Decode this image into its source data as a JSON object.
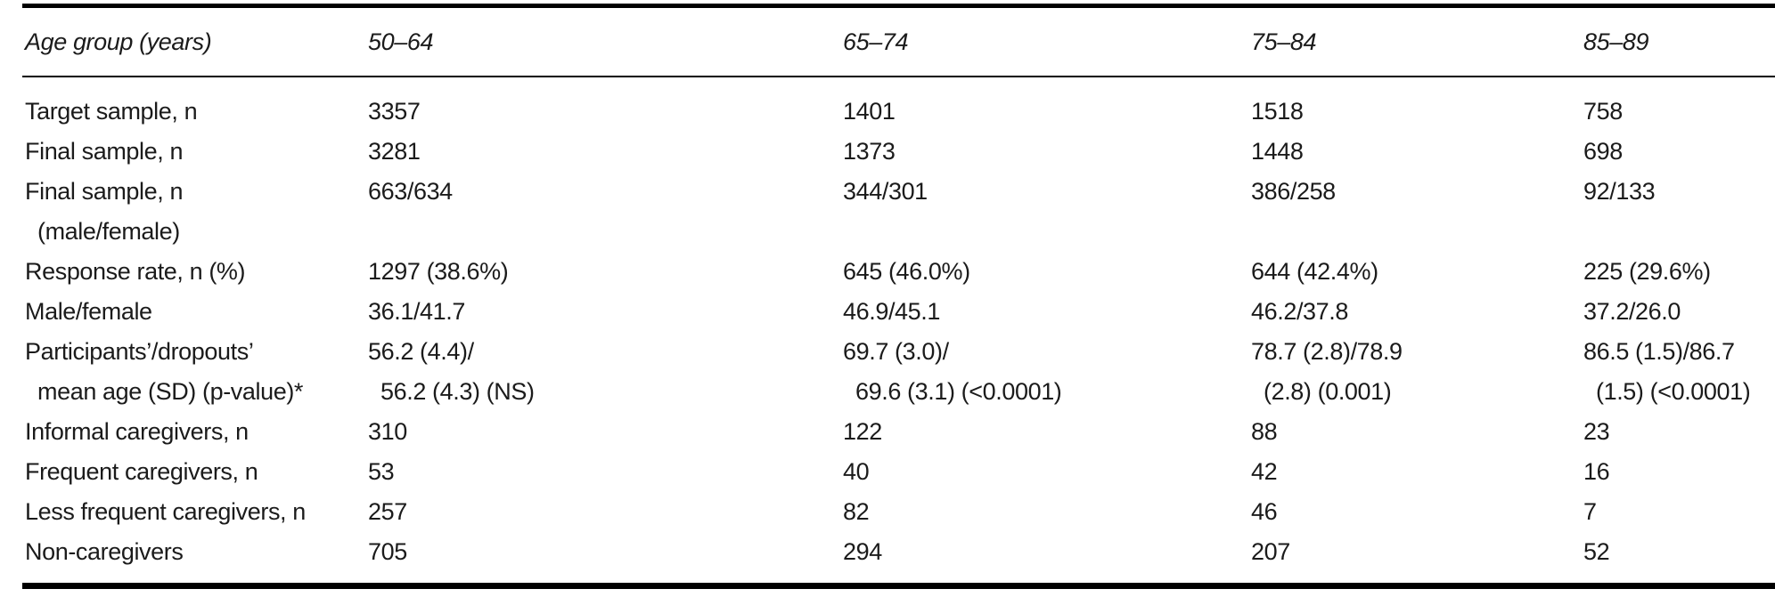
{
  "table": {
    "header": {
      "columns": [
        "Age group (years)",
        "50–64",
        "65–74",
        "75–84",
        "85–89"
      ]
    },
    "rows": [
      {
        "cells": [
          [
            "Target sample, n"
          ],
          [
            "3357"
          ],
          [
            "1401"
          ],
          [
            "1518"
          ],
          [
            "758"
          ]
        ]
      },
      {
        "cells": [
          [
            "Final sample, n"
          ],
          [
            "3281"
          ],
          [
            "1373"
          ],
          [
            "1448"
          ],
          [
            "698"
          ]
        ]
      },
      {
        "cells": [
          [
            "Final sample, n",
            "(male/female)"
          ],
          [
            "663/634"
          ],
          [
            "344/301"
          ],
          [
            "386/258"
          ],
          [
            "92/133"
          ]
        ]
      },
      {
        "cells": [
          [
            "Response rate, n (%)"
          ],
          [
            "1297 (38.6%)"
          ],
          [
            "645 (46.0%)"
          ],
          [
            "644 (42.4%)"
          ],
          [
            "225 (29.6%)"
          ]
        ]
      },
      {
        "cells": [
          [
            "Male/female"
          ],
          [
            "36.1/41.7"
          ],
          [
            "46.9/45.1"
          ],
          [
            "46.2/37.8"
          ],
          [
            "37.2/26.0"
          ]
        ]
      },
      {
        "cells": [
          [
            "Participants’/dropouts’",
            "mean age (SD) (p-value)*"
          ],
          [
            "56.2 (4.4)/",
            "56.2 (4.3) (NS)"
          ],
          [
            "69.7 (3.0)/",
            "69.6 (3.1) (<0.0001)"
          ],
          [
            "78.7 (2.8)/78.9",
            "(2.8) (0.001)"
          ],
          [
            "86.5 (1.5)/86.7",
            "(1.5) (<0.0001)"
          ]
        ]
      },
      {
        "cells": [
          [
            "Informal caregivers, n"
          ],
          [
            "310"
          ],
          [
            "122"
          ],
          [
            "88"
          ],
          [
            "23"
          ]
        ]
      },
      {
        "cells": [
          [
            "Frequent caregivers, n"
          ],
          [
            "53"
          ],
          [
            "40"
          ],
          [
            "42"
          ],
          [
            "16"
          ]
        ]
      },
      {
        "cells": [
          [
            "Less frequent caregivers, n"
          ],
          [
            "257"
          ],
          [
            "82"
          ],
          [
            "46"
          ],
          [
            "7"
          ]
        ]
      },
      {
        "cells": [
          [
            "Non-caregivers"
          ],
          [
            "705"
          ],
          [
            "294"
          ],
          [
            "207"
          ],
          [
            "52"
          ]
        ]
      }
    ]
  }
}
